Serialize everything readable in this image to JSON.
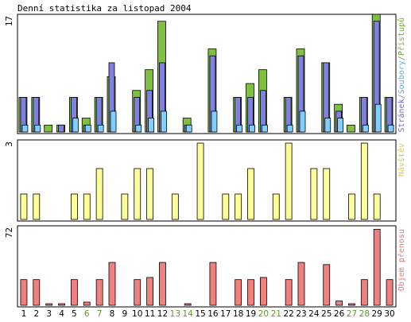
{
  "chart_data": {
    "type": "bar",
    "title": "Denní statistika za listopad 2004",
    "categories": [
      "1",
      "2",
      "3",
      "4",
      "5",
      "6",
      "7",
      "8",
      "9",
      "10",
      "11",
      "12",
      "13",
      "14",
      "15",
      "16",
      "17",
      "18",
      "19",
      "20",
      "21",
      "22",
      "23",
      "24",
      "25",
      "26",
      "27",
      "28",
      "29",
      "30"
    ],
    "weekend_days": [
      "6",
      "7",
      "13",
      "14",
      "20",
      "21",
      "27",
      "28"
    ],
    "colors": {
      "pristupu": "#80c040",
      "stranek": "#8080e0",
      "souboru": "#80d0ff",
      "navstev": "#ffff99",
      "objem": "#f08080",
      "weekend_tick": "#609a2a",
      "weekday_tick": "#000000"
    },
    "panels": [
      {
        "id": "top",
        "ymax": 17,
        "ymax_label": "17",
        "legend": [
          {
            "text": "Stránek",
            "color": "#6a6ad8"
          },
          {
            "text": "/",
            "color": "#888888"
          },
          {
            "text": "Soubory",
            "color": "#5cb0e0"
          },
          {
            "text": "/",
            "color": "#888888"
          },
          {
            "text": "Přístupů",
            "color": "#70b030"
          }
        ],
        "series": [
          {
            "name": "Přístupů",
            "color_key": "pristupu",
            "values": [
              5,
              5,
              1,
              1,
              5,
              2,
              5,
              8,
              0,
              6,
              9,
              16,
              0,
              2,
              0,
              12,
              0,
              5,
              7,
              9,
              0,
              5,
              12,
              0,
              10,
              4,
              1,
              5,
              17,
              5
            ]
          },
          {
            "name": "Stránek",
            "color_key": "stranek",
            "values": [
              5,
              5,
              0,
              1,
              5,
              1,
              5,
              10,
              0,
              5,
              6,
              10,
              0,
              1,
              0,
              11,
              0,
              5,
              5,
              6,
              0,
              5,
              11,
              0,
              10,
              3,
              0,
              5,
              16,
              5
            ]
          },
          {
            "name": "Soubory",
            "color_key": "souboru",
            "values": [
              1,
              1,
              0,
              0,
              2,
              1,
              1,
              3,
              0,
              1,
              2,
              3,
              0,
              1,
              0,
              3,
              0,
              1,
              1,
              1,
              0,
              1,
              3,
              0,
              2,
              2,
              0,
              1,
              4,
              1
            ]
          }
        ]
      },
      {
        "id": "middle",
        "ymax": 3,
        "ymax_label": "3",
        "legend": [
          {
            "text": "Návštěv",
            "color": "#d0d050"
          }
        ],
        "series": [
          {
            "name": "Návštěv",
            "color_key": "navstev",
            "values": [
              1,
              1,
              0,
              0,
              1,
              1,
              2,
              0,
              1,
              2,
              2,
              0,
              1,
              0,
              3,
              0,
              1,
              1,
              2,
              0,
              1,
              3,
              0,
              2,
              2,
              0,
              1,
              3,
              1,
              0
            ]
          }
        ]
      },
      {
        "id": "bottom",
        "ymax": 72,
        "ymax_label": "72",
        "legend": [
          {
            "text": "Objem přenosu",
            "color": "#e87878"
          }
        ],
        "series": [
          {
            "name": "Objem přenosu",
            "color_key": "objem",
            "values": [
              24,
              24,
              1,
              1,
              24,
              3,
              24,
              40,
              0,
              24,
              26,
              40,
              0,
              1,
              0,
              40,
              0,
              24,
              24,
              26,
              0,
              24,
              40,
              0,
              38,
              4,
              1,
              24,
              71,
              24
            ]
          }
        ]
      }
    ]
  }
}
